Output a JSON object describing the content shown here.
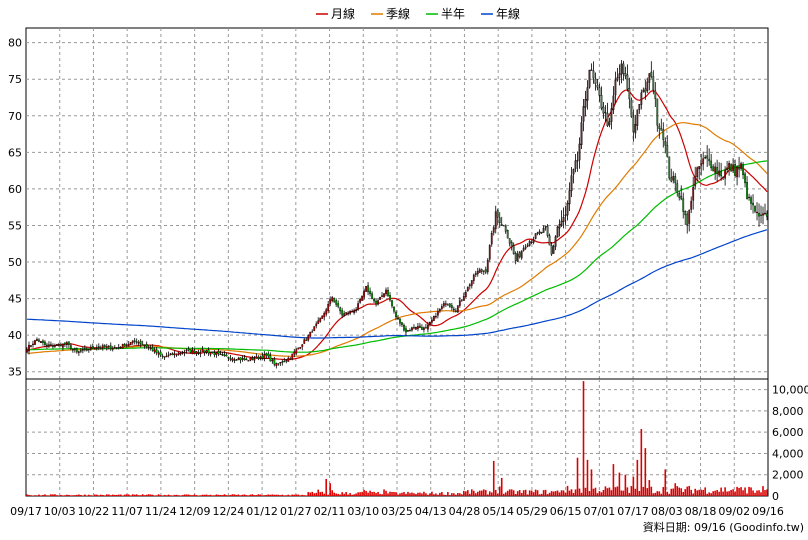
{
  "chart_data": {
    "type": "candlestick",
    "title": "",
    "legend": {
      "position": "top-center",
      "items": [
        {
          "label": "月線",
          "color": "#cc0000"
        },
        {
          "label": "季線",
          "color": "#e07a00"
        },
        {
          "label": "半年",
          "color": "#00bb00"
        },
        {
          "label": "年線",
          "color": "#0044cc"
        }
      ]
    },
    "price_axis": {
      "ticks": [
        "80",
        "75",
        "70",
        "65",
        "60",
        "55",
        "50",
        "45",
        "40",
        "35"
      ],
      "min": 34,
      "max": 82
    },
    "volume_axis": {
      "ticks": [
        "10,000",
        "8,000",
        "6,000",
        "4,000",
        "2,000",
        "0"
      ],
      "max": 11000
    },
    "x_tick_labels": [
      "09/17",
      "10/03",
      "10/22",
      "11/07",
      "11/24",
      "12/09",
      "12/24",
      "01/12",
      "01/27",
      "02/11",
      "03/10",
      "03/25",
      "04/13",
      "04/28",
      "05/14",
      "05/29",
      "06/15",
      "07/01",
      "07/17",
      "08/03",
      "08/18",
      "09/02",
      "09/16"
    ],
    "grid": true,
    "colors": {
      "up": "#cc0000",
      "down": "#00bb00",
      "volume": "#dd0000",
      "wick": "#000000"
    },
    "price_anchors": [
      [
        0,
        38.2
      ],
      [
        5,
        39.4
      ],
      [
        10,
        38.5
      ],
      [
        20,
        38.8
      ],
      [
        25,
        37.6
      ],
      [
        35,
        38.4
      ],
      [
        45,
        38.3
      ],
      [
        55,
        39.2
      ],
      [
        62,
        38.2
      ],
      [
        68,
        37.0
      ],
      [
        80,
        37.8
      ],
      [
        90,
        37.8
      ],
      [
        100,
        37.0
      ],
      [
        110,
        36.6
      ],
      [
        120,
        37.2
      ],
      [
        125,
        35.9
      ],
      [
        132,
        37.0
      ],
      [
        140,
        39.5
      ],
      [
        148,
        42.5
      ],
      [
        153,
        45.2
      ],
      [
        158,
        42.8
      ],
      [
        165,
        43.5
      ],
      [
        170,
        46.5
      ],
      [
        175,
        44.2
      ],
      [
        180,
        46.2
      ],
      [
        185,
        42.5
      ],
      [
        190,
        40.5
      ],
      [
        195,
        41.2
      ],
      [
        200,
        40.8
      ],
      [
        205,
        42.8
      ],
      [
        210,
        44.5
      ],
      [
        215,
        43.5
      ],
      [
        220,
        46.0
      ],
      [
        225,
        48.5
      ],
      [
        230,
        49.0
      ],
      [
        235,
        56.5
      ],
      [
        240,
        54.5
      ],
      [
        245,
        50.2
      ],
      [
        250,
        52.5
      ],
      [
        255,
        53.5
      ],
      [
        260,
        54.5
      ],
      [
        263,
        51.0
      ],
      [
        266,
        54.8
      ],
      [
        270,
        56.3
      ],
      [
        273,
        61.2
      ],
      [
        276,
        64.0
      ],
      [
        279,
        70.5
      ],
      [
        282,
        76.5
      ],
      [
        285,
        74.0
      ],
      [
        288,
        71.5
      ],
      [
        292,
        68.5
      ],
      [
        295,
        74.5
      ],
      [
        298,
        76.5
      ],
      [
        301,
        74.0
      ],
      [
        304,
        68.0
      ],
      [
        307,
        72.0
      ],
      [
        310,
        73.5
      ],
      [
        313,
        76.0
      ],
      [
        316,
        69.5
      ],
      [
        319,
        67.5
      ],
      [
        322,
        62.0
      ],
      [
        325,
        60.5
      ],
      [
        328,
        58.5
      ],
      [
        331,
        55.0
      ],
      [
        334,
        60.5
      ],
      [
        337,
        63.0
      ],
      [
        340,
        64.0
      ],
      [
        343,
        63.5
      ],
      [
        346,
        62.5
      ],
      [
        349,
        62.0
      ],
      [
        352,
        63.0
      ],
      [
        355,
        62.5
      ],
      [
        358,
        63.0
      ],
      [
        361,
        59.0
      ],
      [
        364,
        57.5
      ],
      [
        367,
        56.0
      ],
      [
        371,
        56.5
      ]
    ],
    "volume_spikes": [
      [
        0,
        150
      ],
      [
        146,
        600
      ],
      [
        150,
        1600
      ],
      [
        152,
        1200
      ],
      [
        234,
        3300
      ],
      [
        238,
        1700
      ],
      [
        276,
        3600
      ],
      [
        279,
        10800
      ],
      [
        281,
        3400
      ],
      [
        283,
        2500
      ],
      [
        294,
        3000
      ],
      [
        297,
        2200
      ],
      [
        300,
        2000
      ],
      [
        304,
        1800
      ],
      [
        306,
        3400
      ],
      [
        308,
        6300
      ],
      [
        310,
        4500
      ],
      [
        312,
        1500
      ],
      [
        320,
        2500
      ],
      [
        325,
        1200
      ],
      [
        360,
        800
      ],
      [
        365,
        300
      ]
    ],
    "volume_base": 120,
    "ma_windows": {
      "月線": 20,
      "季線": 60,
      "半年": 120,
      "年線": 240
    },
    "ma_history": {
      "年線": 42.2,
      "半年": 38.0,
      "季線": 37.5,
      "月線": 38.0
    }
  },
  "source_label": "資料日期: 09/16  (Goodinfo.tw)"
}
